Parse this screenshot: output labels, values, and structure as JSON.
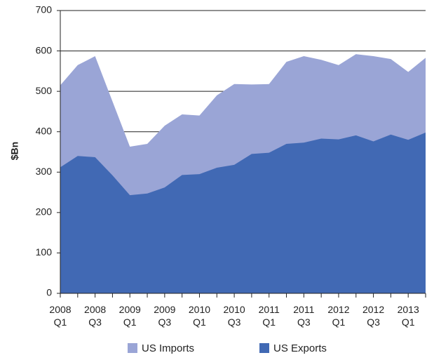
{
  "chart_data": {
    "type": "area",
    "y_label": "$Bn",
    "categories": [
      "2008\nQ1",
      null,
      "2008\nQ3",
      null,
      "2009\nQ1",
      null,
      "2009\nQ3",
      null,
      "2010\nQ1",
      null,
      "2010\nQ3",
      null,
      "2011\nQ1",
      null,
      "2011\nQ3",
      null,
      "2012\nQ1",
      null,
      "2012\nQ3",
      null,
      "2013\nQ1",
      null
    ],
    "series": [
      {
        "name": "US Imports",
        "color": "#9aa5d6",
        "values": [
          515,
          565,
          587,
          475,
          363,
          370,
          415,
          443,
          440,
          490,
          518,
          517,
          518,
          573,
          587,
          578,
          565,
          592,
          587,
          580,
          548,
          583
        ]
      },
      {
        "name": "US Exports",
        "color": "#4169b4",
        "values": [
          312,
          340,
          337,
          292,
          243,
          247,
          262,
          293,
          295,
          311,
          318,
          345,
          348,
          370,
          373,
          383,
          381,
          391,
          376,
          393,
          380,
          398
        ]
      }
    ],
    "ylim": [
      0,
      700
    ],
    "yticks": [
      0,
      100,
      200,
      300,
      400,
      500,
      600,
      700
    ],
    "grid": true
  }
}
